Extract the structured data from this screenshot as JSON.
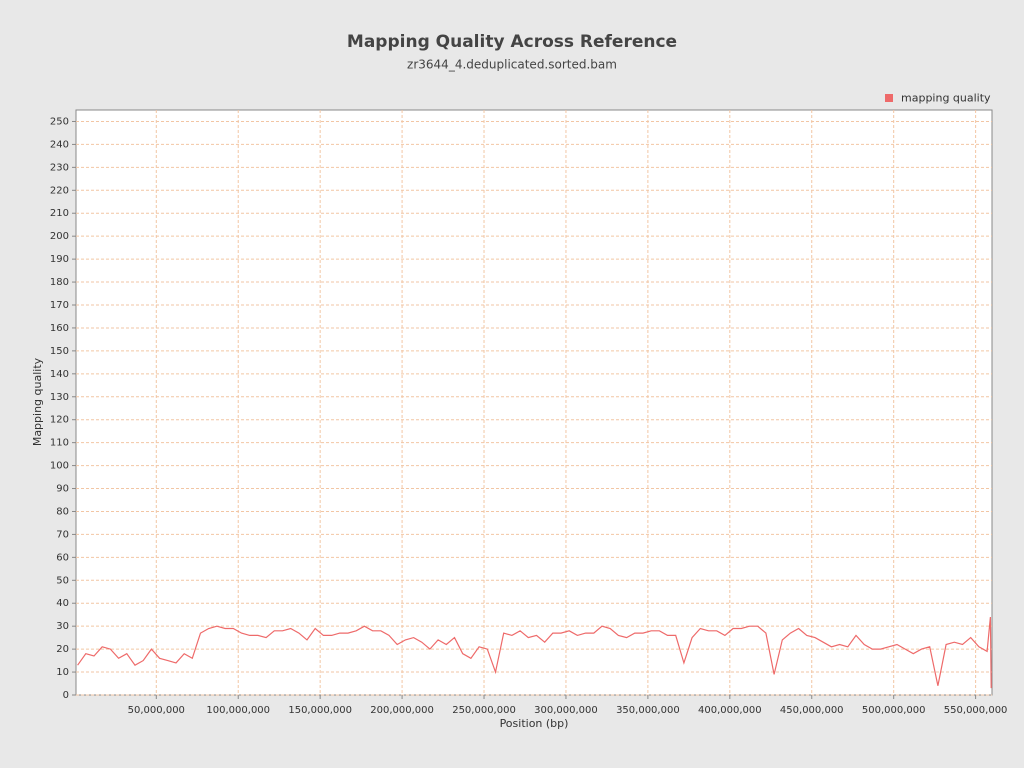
{
  "chart_data": {
    "type": "line",
    "title": "Mapping Quality Across Reference",
    "subtitle": "zr3644_4.deduplicated.sorted.bam",
    "xlabel": "Position (bp)",
    "ylabel": "Mapping quality",
    "legend": "top-right",
    "grid": true,
    "x": [
      2000000,
      7000000,
      12000000,
      17000000,
      22000000,
      27000000,
      32000000,
      37000000,
      42000000,
      47000000,
      52000000,
      57000000,
      62000000,
      67000000,
      72000000,
      77000000,
      82000000,
      87000000,
      92000000,
      97000000,
      102000000,
      107000000,
      112000000,
      117000000,
      122000000,
      127000000,
      132000000,
      137000000,
      142000000,
      147000000,
      152000000,
      157000000,
      162000000,
      167000000,
      172000000,
      177000000,
      182000000,
      187000000,
      192000000,
      197000000,
      202000000,
      207000000,
      212000000,
      217000000,
      222000000,
      227000000,
      232000000,
      237000000,
      242000000,
      247000000,
      252000000,
      257000000,
      262000000,
      267000000,
      272000000,
      277000000,
      282000000,
      287000000,
      292000000,
      297000000,
      302000000,
      307000000,
      312000000,
      317000000,
      322000000,
      327000000,
      332000000,
      337000000,
      342000000,
      347000000,
      352000000,
      357000000,
      362000000,
      367000000,
      372000000,
      377000000,
      382000000,
      387000000,
      392000000,
      397000000,
      402000000,
      407000000,
      412000000,
      417000000,
      422000000,
      427000000,
      432000000,
      437000000,
      442000000,
      447000000,
      452000000,
      457000000,
      462000000,
      467000000,
      472000000,
      477000000,
      482000000,
      487000000,
      492000000,
      497000000,
      502000000,
      507000000,
      512000000,
      517000000,
      522000000,
      527000000,
      532000000,
      537000000,
      542000000,
      547000000,
      552000000,
      557000000,
      559000000,
      559500000
    ],
    "series": [
      {
        "name": "mapping quality",
        "color": "#ee6a6a",
        "values": [
          13,
          18,
          17,
          21,
          20,
          16,
          18,
          13,
          15,
          20,
          16,
          15,
          14,
          18,
          16,
          27,
          29,
          30,
          29,
          29,
          27,
          26,
          26,
          25,
          28,
          28,
          29,
          27,
          24,
          29,
          26,
          26,
          27,
          27,
          28,
          30,
          28,
          28,
          26,
          22,
          24,
          25,
          23,
          20,
          24,
          22,
          25,
          18,
          16,
          21,
          20,
          10,
          27,
          26,
          28,
          25,
          26,
          23,
          27,
          27,
          28,
          26,
          27,
          27,
          30,
          29,
          26,
          25,
          27,
          27,
          28,
          28,
          26,
          26,
          14,
          25,
          29,
          28,
          28,
          26,
          29,
          29,
          30,
          30,
          27,
          9,
          24,
          27,
          29,
          26,
          25,
          23,
          21,
          22,
          21,
          26,
          22,
          20,
          20,
          21,
          22,
          20,
          18,
          20,
          21,
          4,
          22,
          23,
          22,
          25,
          21,
          19,
          34,
          3
        ]
      }
    ],
    "xlim": [
      1000000,
      560000000
    ],
    "ylim": [
      0,
      255
    ],
    "xticks": [
      {
        "value": 50000000,
        "label": "50,000,000"
      },
      {
        "value": 100000000,
        "label": "100,000,000"
      },
      {
        "value": 150000000,
        "label": "150,000,000"
      },
      {
        "value": 200000000,
        "label": "200,000,000"
      },
      {
        "value": 250000000,
        "label": "250,000,000"
      },
      {
        "value": 300000000,
        "label": "300,000,000"
      },
      {
        "value": 350000000,
        "label": "350,000,000"
      },
      {
        "value": 400000000,
        "label": "400,000,000"
      },
      {
        "value": 450000000,
        "label": "450,000,000"
      },
      {
        "value": 500000000,
        "label": "500,000,000"
      },
      {
        "value": 550000000,
        "label": "550,000,000"
      }
    ],
    "yticks": [
      0,
      10,
      20,
      30,
      40,
      50,
      60,
      70,
      80,
      90,
      100,
      110,
      120,
      130,
      140,
      150,
      160,
      170,
      180,
      190,
      200,
      210,
      220,
      230,
      240,
      250
    ]
  }
}
